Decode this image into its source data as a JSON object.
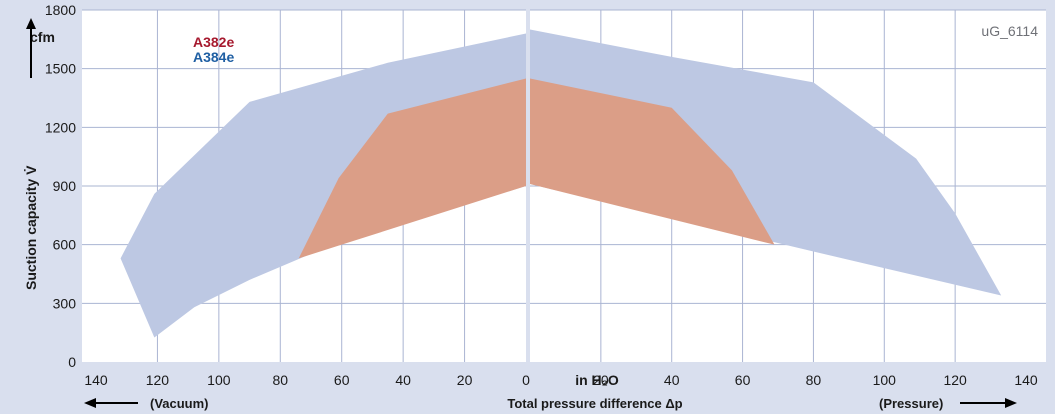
{
  "chart_data": {
    "type": "area",
    "image_id_label": "uG_6114",
    "ylabel": "Suction capacity",
    "ylabel_symbol": "V̇",
    "y_unit": "cfm",
    "x_unit_label": "in H₂O",
    "xlabel": "Total pressure difference Δp",
    "vacuum_label": "(Vacuum)",
    "pressure_label": "(Pressure)",
    "ylim": [
      0,
      1800
    ],
    "y_ticks": [
      0,
      300,
      600,
      900,
      1200,
      1500,
      1800
    ],
    "x_ticks": [
      140,
      120,
      100,
      80,
      60,
      40,
      20,
      0
    ],
    "xlim": [
      0,
      140
    ],
    "grid": true,
    "legend_placement": "top-left",
    "colors": {
      "A384e": "#bdc8e3",
      "A382e": "#db9e87",
      "A382e_label": "#a6192e",
      "A384e_label": "#1f5fa3",
      "frame_bg": "#d9dfee",
      "grid": "#aab4d2",
      "divider": "#aab4d2"
    },
    "series": [
      {
        "name": "A384e",
        "vacuum": [
          [
            132,
            530
          ],
          [
            121,
            860
          ],
          [
            90,
            1330
          ],
          [
            45,
            1530
          ],
          [
            0,
            1680
          ],
          [
            0,
            900
          ],
          [
            60,
            620
          ],
          [
            90,
            420
          ],
          [
            108,
            280
          ],
          [
            121,
            125
          ]
        ],
        "pressure": [
          [
            0,
            1700
          ],
          [
            40,
            1560
          ],
          [
            80,
            1430
          ],
          [
            109,
            1040
          ],
          [
            120,
            760
          ],
          [
            133,
            340
          ],
          [
            80,
            565
          ],
          [
            0,
            910
          ]
        ]
      },
      {
        "name": "A382e",
        "vacuum": [
          [
            74,
            530
          ],
          [
            61,
            940
          ],
          [
            45,
            1270
          ],
          [
            0,
            1450
          ],
          [
            0,
            900
          ],
          [
            60,
            600
          ]
        ],
        "pressure": [
          [
            0,
            1450
          ],
          [
            40,
            1300
          ],
          [
            57,
            980
          ],
          [
            69,
            600
          ],
          [
            0,
            910
          ]
        ]
      }
    ]
  }
}
